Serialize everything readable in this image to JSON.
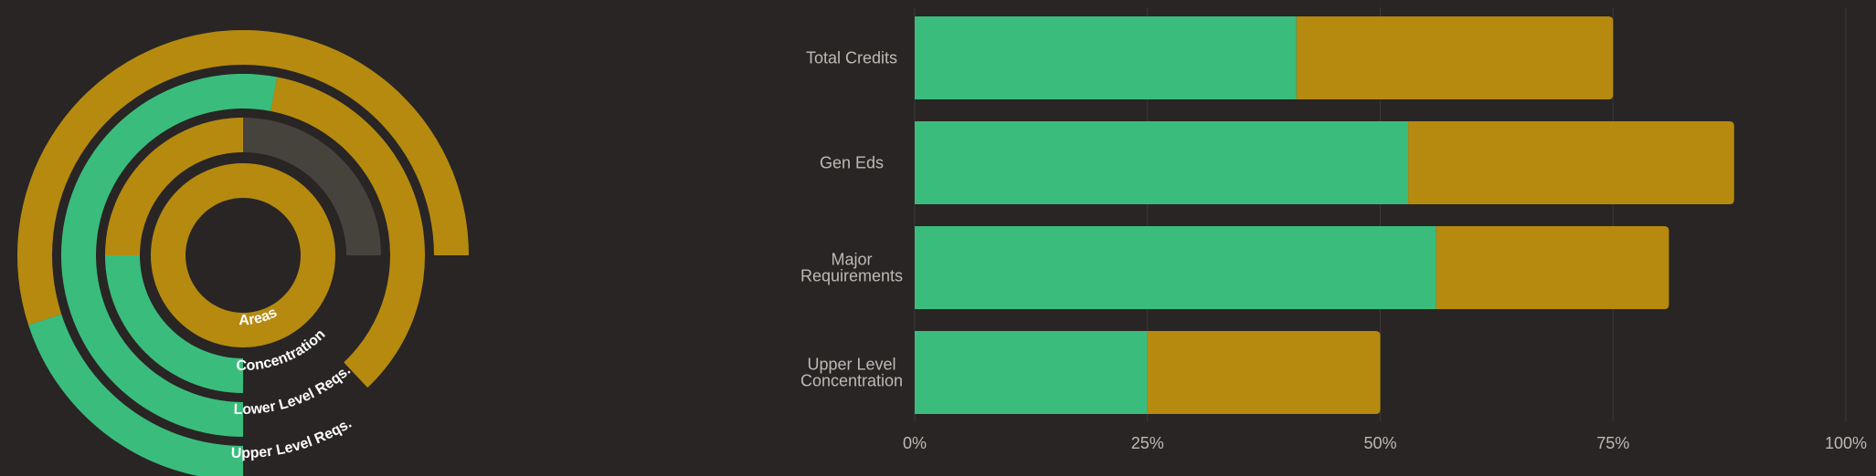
{
  "colors": {
    "background": "#282524",
    "track": "#46423c",
    "completed": "#3abd7c",
    "in_progress": "#b68a0f",
    "grid": "#3b3835",
    "text": "#bdbab6"
  },
  "chart_data": [
    {
      "type": "radial-bar",
      "rings": [
        {
          "name": "Areas",
          "completed": 0,
          "in_progress": 1.0
        },
        {
          "name": "Concentration",
          "completed": 0.25,
          "in_progress": 0.25
        },
        {
          "name": "Lower Level Reqs.",
          "completed": 0.53,
          "in_progress": 0.35
        },
        {
          "name": "Upper Level Reqs.",
          "completed": 0.2,
          "in_progress": 0.55
        }
      ]
    },
    {
      "type": "bar",
      "orientation": "horizontal",
      "stacked": true,
      "categories": [
        [
          "Total Credits"
        ],
        [
          "Gen Eds"
        ],
        [
          "Major",
          "Requirements"
        ],
        [
          "Upper Level",
          "Concentration"
        ]
      ],
      "series": [
        {
          "values": [
            41,
            53,
            56,
            25
          ],
          "color": "#3abd7c"
        },
        {
          "values": [
            34,
            35,
            25,
            25
          ],
          "color": "#b68a0f"
        }
      ],
      "xlim": [
        0,
        100
      ],
      "xticks": [
        "0%",
        "25%",
        "50%",
        "75%",
        "100%"
      ],
      "grid": true
    }
  ]
}
